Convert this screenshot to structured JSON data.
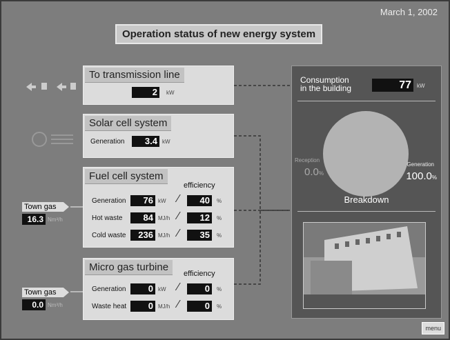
{
  "date": "March 1, 2002",
  "title": "Operation status of new energy system",
  "transmission": {
    "title": "To transmission line",
    "value": "2",
    "unit": "kW"
  },
  "solar": {
    "title": "Solar cell system",
    "rows": [
      {
        "label": "Generation",
        "value": "3.4",
        "unit": "kW"
      }
    ]
  },
  "fuel_cell": {
    "title": "Fuel cell system",
    "efficiency_label": "efficiency",
    "rows": [
      {
        "label": "Generation",
        "value": "76",
        "unit": "kW",
        "efficiency": "40",
        "efficiency_unit": "%"
      },
      {
        "label": "Hot waste",
        "value": "84",
        "unit": "MJ/h",
        "efficiency": "12",
        "efficiency_unit": "%"
      },
      {
        "label": "Cold waste",
        "value": "236",
        "unit": "MJ/h",
        "efficiency": "35",
        "efficiency_unit": "%"
      }
    ]
  },
  "turbine": {
    "title": "Micro gas turbine",
    "efficiency_label": "efficiency",
    "rows": [
      {
        "label": "Generation",
        "value": "0",
        "unit": "kW",
        "efficiency": "0",
        "efficiency_unit": "%"
      },
      {
        "label": "Waste heat",
        "value": "0",
        "unit": "MJ/h",
        "efficiency": "0",
        "efficiency_unit": "%"
      }
    ]
  },
  "town_gas": [
    {
      "label": "Town gas",
      "value": "16.3",
      "unit": "Nm³/h"
    },
    {
      "label": "Town gas",
      "value": "0.0",
      "unit": "Nm³/h"
    }
  ],
  "consumption": {
    "label_lines": [
      "Consumption",
      "in the building"
    ],
    "value": "77",
    "unit": "kW"
  },
  "breakdown": {
    "title": "Breakdown",
    "reception": {
      "label": "Reception",
      "value": "0.0",
      "unit": "%"
    },
    "generation": {
      "label": "Generation",
      "value": "100.0",
      "unit": "%"
    }
  },
  "menu": "menu"
}
